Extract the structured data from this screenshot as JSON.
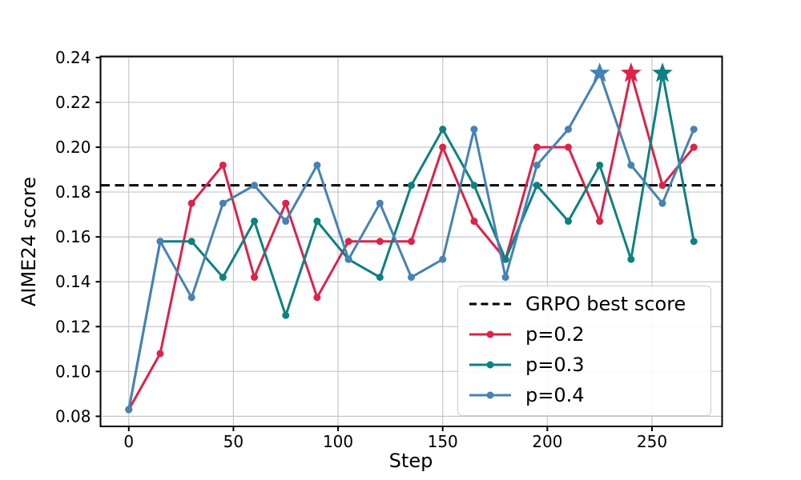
{
  "chart_data": {
    "type": "line",
    "title": "",
    "xlabel": "Step",
    "ylabel": "AIME24 score",
    "x": [
      0,
      15,
      30,
      45,
      60,
      75,
      90,
      105,
      120,
      135,
      150,
      165,
      180,
      195,
      210,
      225,
      240,
      255,
      270
    ],
    "series": [
      {
        "name": "p=0.2",
        "color": "#DC2349",
        "star_step": 240,
        "values": [
          0.083,
          0.108,
          0.175,
          0.192,
          0.142,
          0.175,
          0.133,
          0.158,
          0.158,
          0.158,
          0.2,
          0.167,
          0.15,
          0.2,
          0.2,
          0.167,
          0.233,
          0.183,
          0.2
        ]
      },
      {
        "name": "p=0.3",
        "color": "#0F8080",
        "star_step": 255,
        "values": [
          0.083,
          0.158,
          0.158,
          0.142,
          0.167,
          0.125,
          0.167,
          0.15,
          0.142,
          0.183,
          0.208,
          0.183,
          0.15,
          0.183,
          0.167,
          0.192,
          0.15,
          0.233,
          0.158
        ]
      },
      {
        "name": "p=0.4",
        "color": "#4682B4",
        "star_step": 225,
        "values": [
          0.083,
          0.158,
          0.133,
          0.175,
          0.183,
          0.167,
          0.192,
          0.15,
          0.175,
          0.142,
          0.15,
          0.208,
          0.142,
          0.192,
          0.208,
          0.233,
          0.192,
          0.175,
          0.208
        ]
      }
    ],
    "baseline": {
      "label": "GRPO best score",
      "value": 0.183,
      "color": "#000000",
      "style": "dashed"
    },
    "legend": [
      {
        "label": "GRPO best score",
        "color": "#000000",
        "dashed": true
      },
      {
        "label": "p=0.2",
        "color": "#DC2349",
        "dashed": false
      },
      {
        "label": "p=0.3",
        "color": "#0F8080",
        "dashed": false
      },
      {
        "label": "p=0.4",
        "color": "#4682B4",
        "dashed": false
      }
    ],
    "legend_position": "lower right inside",
    "grid": true,
    "grid_color": "#c6c6c6",
    "xlim": [
      -13.5,
      283.5
    ],
    "ylim": [
      0.0755,
      0.2405
    ],
    "xticks": [
      0,
      50,
      100,
      150,
      200,
      250
    ],
    "xtick_labels": [
      "0",
      "50",
      "100",
      "150",
      "200",
      "250"
    ],
    "yticks": [
      0.08,
      0.1,
      0.12,
      0.14,
      0.16,
      0.18,
      0.2,
      0.22,
      0.24
    ],
    "ytick_labels": [
      "0.08",
      "0.10",
      "0.12",
      "0.14",
      "0.16",
      "0.18",
      "0.20",
      "0.22",
      "0.24"
    ]
  }
}
